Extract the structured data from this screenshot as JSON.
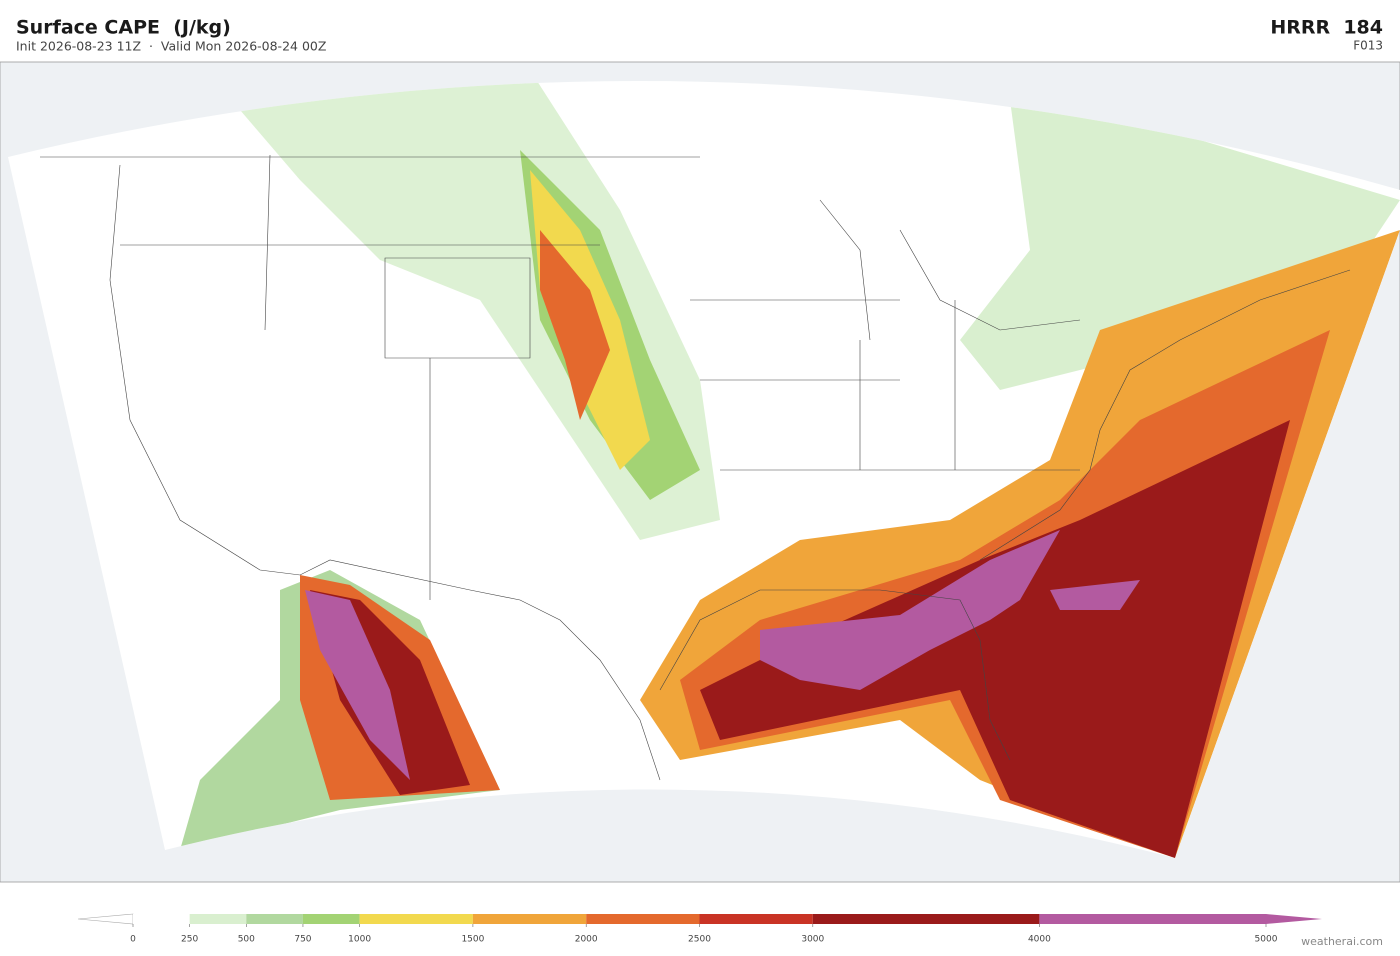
{
  "header": {
    "title": "Surface CAPE  (J/kg)",
    "subtitle": "Init 2026-08-23 11Z  ·  Valid Mon 2026-08-24 00Z",
    "model": "HRRR  184",
    "forecast_hour": "F013"
  },
  "colorbar": {
    "lim": [
      0,
      5000
    ],
    "ticks": [
      0,
      250,
      500,
      750,
      1000,
      1500,
      2000,
      2500,
      3000,
      4000,
      5000
    ],
    "colors": [
      "#ffffff",
      "#d9efcf",
      "#b1d89f",
      "#a3d374",
      "#f2d94e",
      "#f0a53a",
      "#e4692d",
      "#c93325",
      "#9a1a1a",
      "#b35aa0"
    ]
  },
  "footer": {
    "credit": "weatherai.com"
  }
}
